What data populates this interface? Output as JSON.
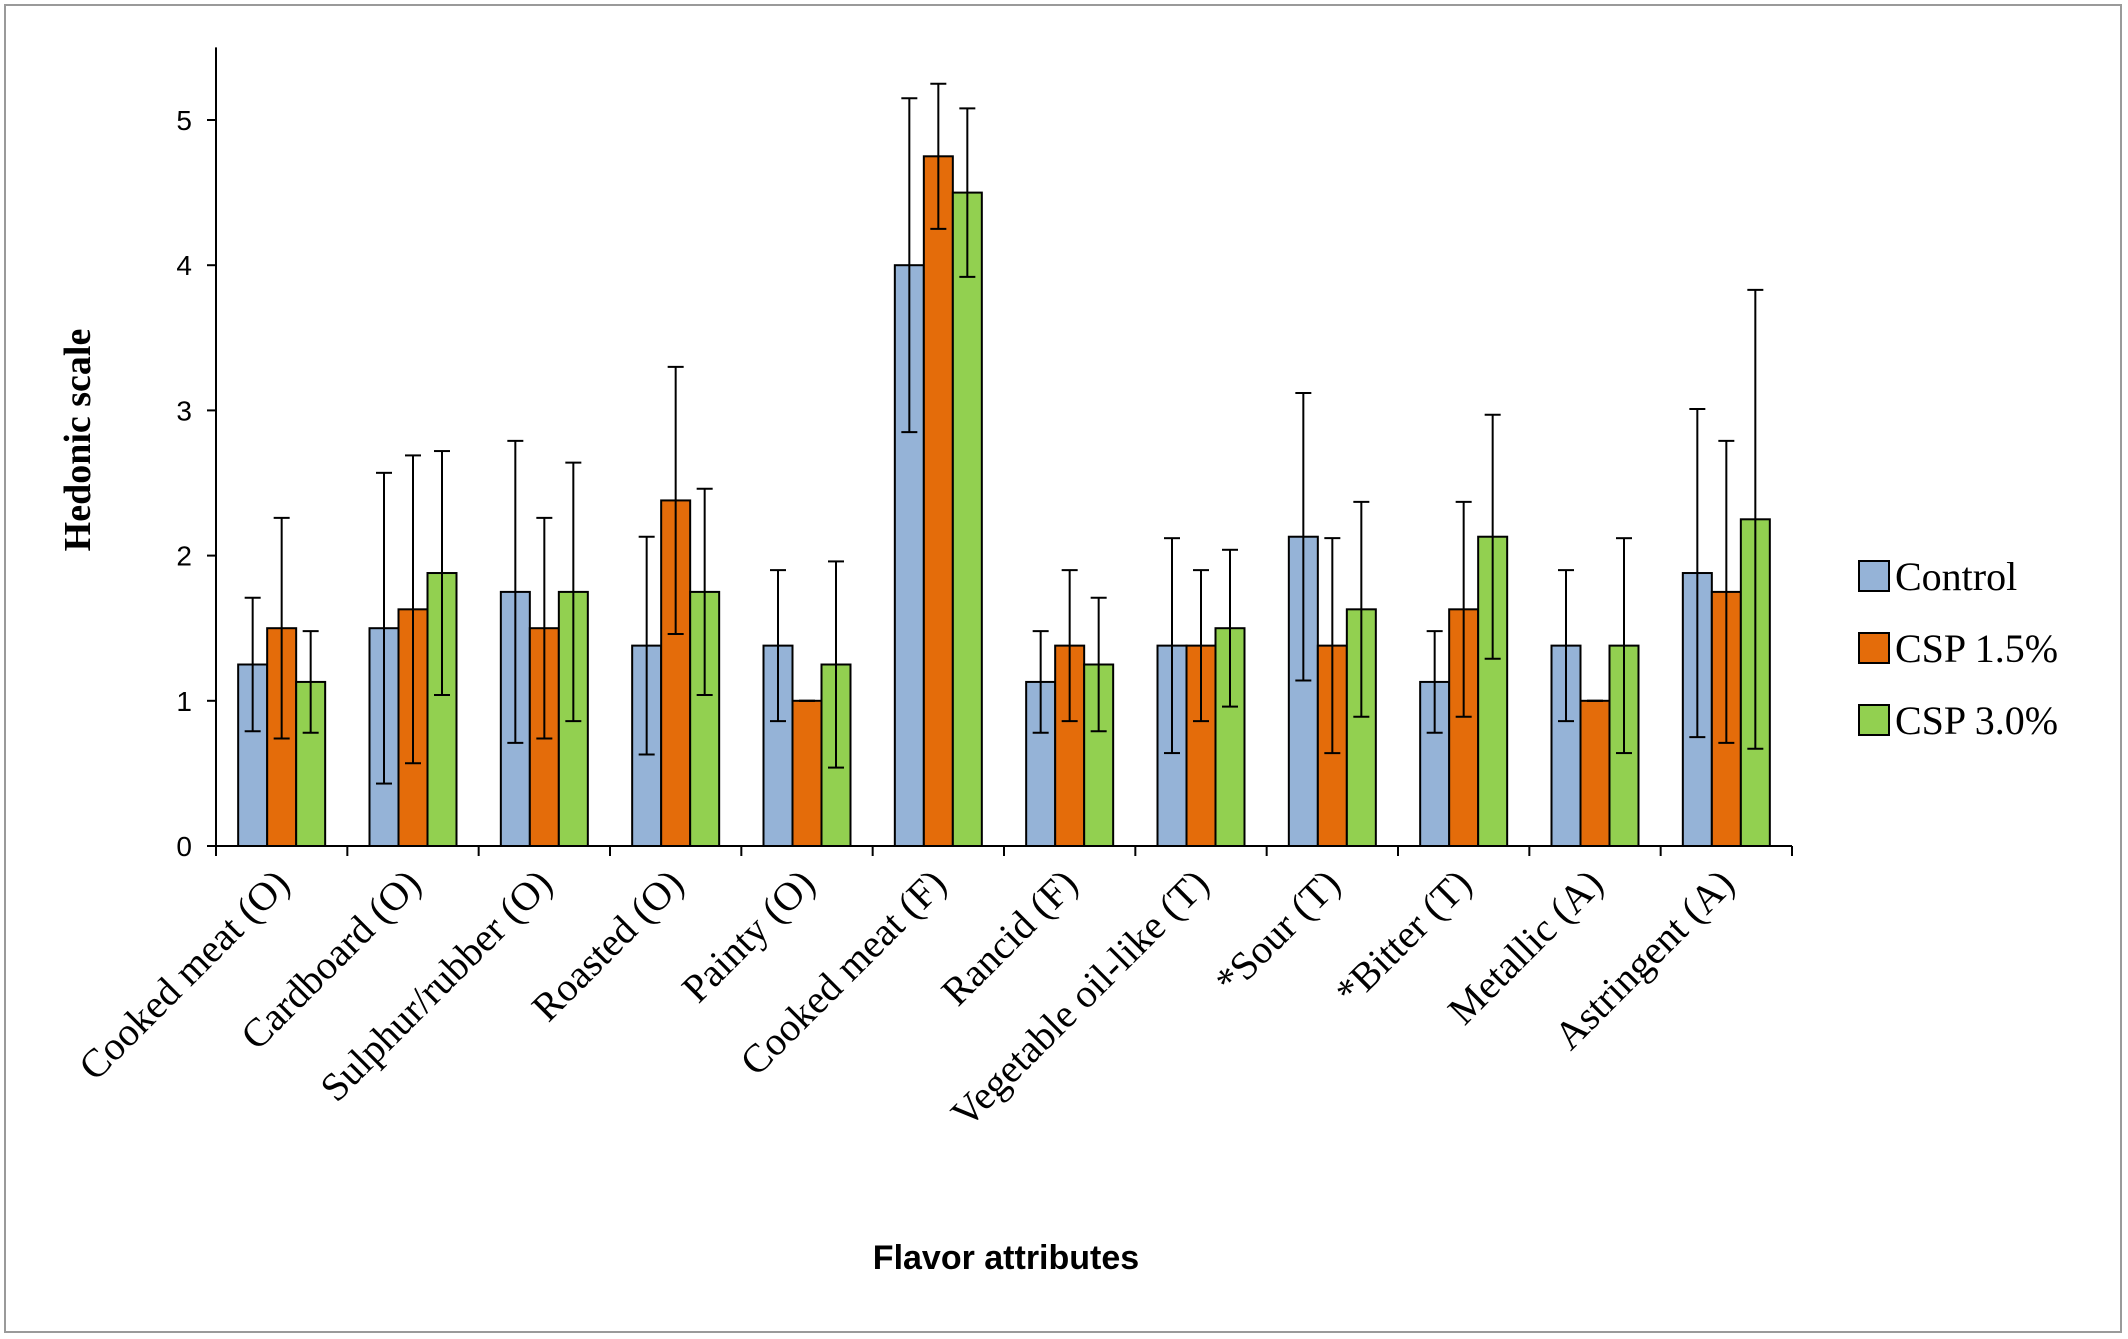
{
  "chart_data": {
    "type": "bar",
    "title": "",
    "xlabel": "Flavor attributes",
    "ylabel": "Hedonic scale",
    "ylim": [
      0,
      5.5
    ],
    "yticks": [
      0,
      1,
      2,
      3,
      4,
      5
    ],
    "grid": false,
    "legend_position": "right",
    "error_bars": true,
    "categories": [
      "Cooked meat (O)",
      "Cardboard (O)",
      "Sulphur/rubber (O)",
      "Roasted (O)",
      "Painty (O)",
      "Cooked meat (F)",
      "Rancid (F)",
      "Vegetable oil-like (T)",
      "*Sour (T)",
      "*Bitter (T)",
      "Metallic (A)",
      "Astringent (A)"
    ],
    "series": [
      {
        "name": "Control",
        "color": "#95b3d7",
        "values": [
          1.25,
          1.5,
          1.75,
          1.38,
          1.38,
          4.0,
          1.13,
          1.38,
          2.13,
          1.13,
          1.38,
          1.88
        ],
        "error": [
          0.46,
          1.07,
          1.04,
          0.75,
          0.52,
          1.15,
          0.35,
          0.74,
          0.99,
          0.35,
          0.52,
          1.13
        ]
      },
      {
        "name": "CSP 1.5%",
        "color": "#e46c0a",
        "values": [
          1.5,
          1.63,
          1.5,
          2.38,
          1.0,
          4.75,
          1.38,
          1.38,
          1.38,
          1.63,
          1.0,
          1.75
        ],
        "error": [
          0.76,
          1.06,
          0.76,
          0.92,
          0.0,
          0.5,
          0.52,
          0.52,
          0.74,
          0.74,
          0.0,
          1.04
        ]
      },
      {
        "name": "CSP 3.0%",
        "color": "#92d050",
        "values": [
          1.13,
          1.88,
          1.75,
          1.75,
          1.25,
          4.5,
          1.25,
          1.5,
          1.63,
          2.13,
          1.38,
          2.25
        ],
        "error": [
          0.35,
          0.84,
          0.89,
          0.71,
          0.71,
          0.58,
          0.46,
          0.54,
          0.74,
          0.84,
          0.74,
          1.58
        ]
      }
    ]
  }
}
